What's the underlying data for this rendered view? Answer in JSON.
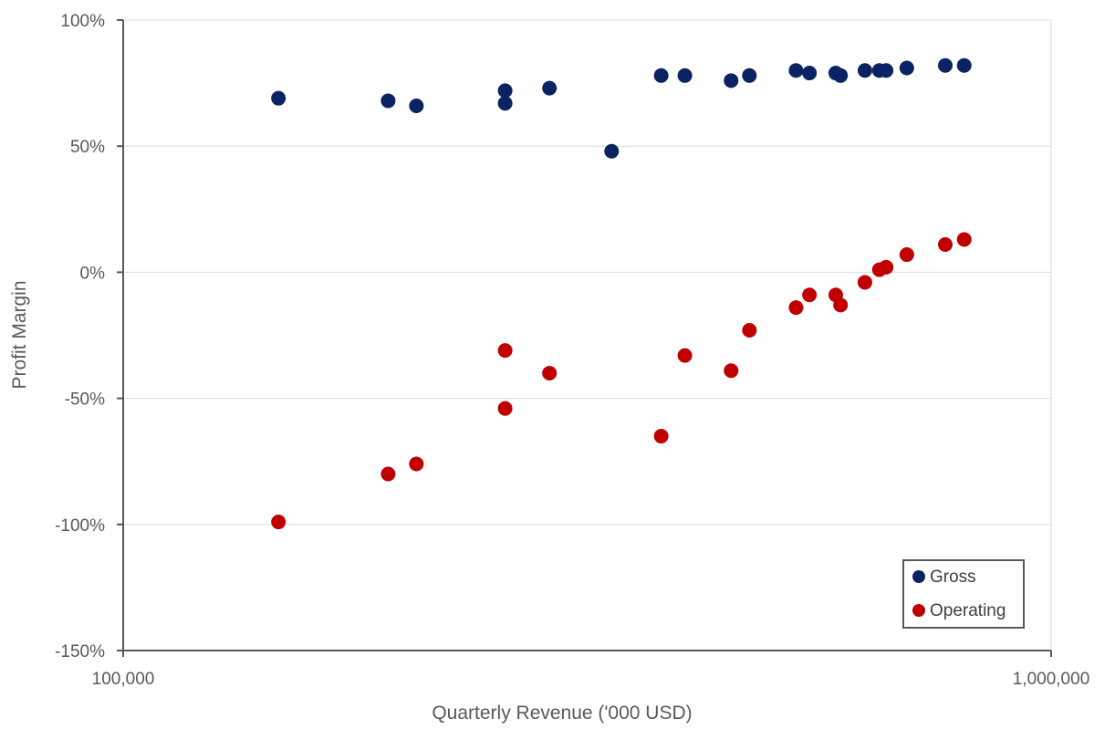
{
  "chart_data": {
    "type": "scatter",
    "title": "",
    "xlabel": "Quarterly Revenue ('000 USD)",
    "ylabel": "Profit Margin",
    "xscale": "log",
    "xlim": [
      100000,
      1000000
    ],
    "ylim": [
      -150,
      100
    ],
    "x_tick_values": [
      100000,
      1000000
    ],
    "x_tick_labels": [
      "100,000",
      "1,000,000"
    ],
    "y_tick_values": [
      100,
      50,
      0,
      -50,
      -100,
      -150
    ],
    "y_tick_labels": [
      "100%",
      "50%",
      "0%",
      "-50%",
      "-100%",
      "-150%"
    ],
    "grid": "horizontal",
    "legend_position": "bottom-right",
    "series": [
      {
        "name": "Gross",
        "color": "#0b2363",
        "points": [
          [
            147000,
            69
          ],
          [
            193000,
            68
          ],
          [
            207000,
            66
          ],
          [
            258000,
            72
          ],
          [
            258000,
            67
          ],
          [
            288000,
            73
          ],
          [
            336000,
            48
          ],
          [
            380000,
            78
          ],
          [
            403000,
            78
          ],
          [
            452000,
            76
          ],
          [
            473000,
            78
          ],
          [
            531000,
            80
          ],
          [
            549000,
            79
          ],
          [
            586000,
            79
          ],
          [
            593000,
            78
          ],
          [
            630000,
            80
          ],
          [
            653000,
            80
          ],
          [
            664000,
            80
          ],
          [
            699000,
            81
          ],
          [
            769000,
            82
          ],
          [
            806000,
            82
          ]
        ]
      },
      {
        "name": "Operating",
        "color": "#c00000",
        "points": [
          [
            147000,
            -99
          ],
          [
            193000,
            -80
          ],
          [
            207000,
            -76
          ],
          [
            258000,
            -31
          ],
          [
            258000,
            -54
          ],
          [
            288000,
            -40
          ],
          [
            380000,
            -65
          ],
          [
            403000,
            -33
          ],
          [
            452000,
            -39
          ],
          [
            473000,
            -23
          ],
          [
            531000,
            -14
          ],
          [
            549000,
            -9
          ],
          [
            586000,
            -9
          ],
          [
            593000,
            -13
          ],
          [
            630000,
            -4
          ],
          [
            653000,
            1
          ],
          [
            664000,
            2
          ],
          [
            699000,
            7
          ],
          [
            769000,
            11
          ],
          [
            806000,
            13
          ]
        ]
      }
    ]
  }
}
